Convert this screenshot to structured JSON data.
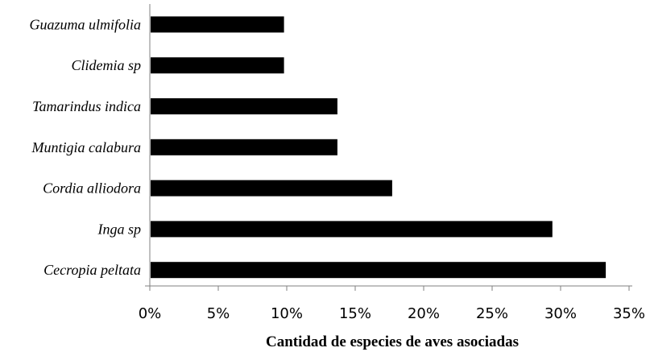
{
  "chart_data": {
    "type": "bar",
    "orientation": "horizontal",
    "categories": [
      "Guazuma ulmifolia",
      "Clidemia sp",
      "Tamarindus indica",
      "Muntigia calabura",
      "Cordia alliodora",
      "Inga sp",
      "Cecropia peltata"
    ],
    "values": [
      9.8,
      9.8,
      13.7,
      13.7,
      17.7,
      29.4,
      33.3
    ],
    "value_unit": "%",
    "xlabel": "Cantidad de especies de aves asociadas",
    "ylabel": "",
    "title": "",
    "xlim": [
      0,
      35
    ],
    "x_ticks": [
      "0%",
      "5%",
      "10%",
      "15%",
      "20%",
      "25%",
      "30%",
      "35%"
    ],
    "grid": false,
    "legend": "none",
    "bar_color": "#000000"
  }
}
